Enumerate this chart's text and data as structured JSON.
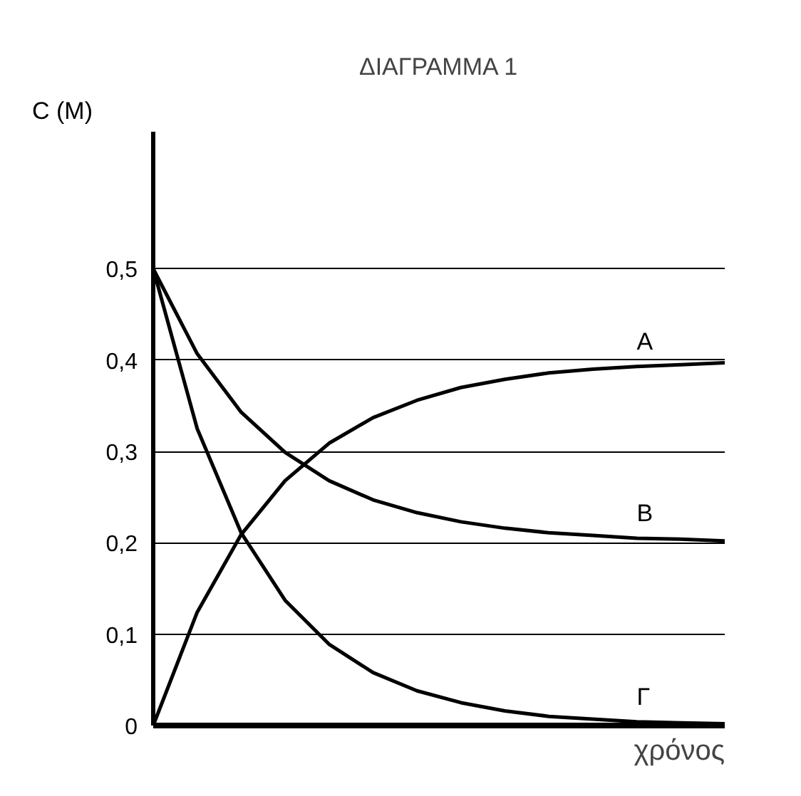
{
  "chart_data": {
    "type": "line",
    "title": "ΔΙΑΓΡΑΜΜΑ 1",
    "xlabel": "χρόνος",
    "ylabel": "C (M)",
    "categories": [
      null,
      null,
      null,
      null,
      null,
      null,
      null,
      null,
      null,
      null,
      null,
      null,
      null,
      null
    ],
    "series": [
      {
        "name": "A",
        "color": "#000000",
        "values": [
          0,
          0.124,
          0.209,
          0.268,
          0.309,
          0.337,
          0.356,
          0.37,
          0.379,
          0.386,
          0.39,
          0.393,
          0.395,
          0.397
        ]
      },
      {
        "name": "B",
        "color": "#000000",
        "values": [
          0.5,
          0.407,
          0.343,
          0.299,
          0.268,
          0.247,
          0.233,
          0.223,
          0.216,
          0.211,
          0.208,
          0.205,
          0.204,
          0.202
        ]
      },
      {
        "name": "Γ",
        "color": "#000000",
        "values": [
          0.5,
          0.325,
          0.211,
          0.137,
          0.089,
          0.058,
          0.038,
          0.025,
          0.016,
          0.01,
          0.007,
          0.004,
          0.003,
          0.002
        ]
      }
    ],
    "ylim": [
      0,
      0.65
    ],
    "yticks": [
      {
        "value": 0,
        "label": "0"
      },
      {
        "value": 0.1,
        "label": "0,1"
      },
      {
        "value": 0.2,
        "label": "0,2"
      },
      {
        "value": 0.3,
        "label": "0,3"
      },
      {
        "value": 0.4,
        "label": "0,4"
      },
      {
        "value": 0.5,
        "label": "0,5"
      }
    ],
    "tick_labels": "y",
    "grid": "y",
    "marker": "none",
    "line_style": "solid"
  }
}
